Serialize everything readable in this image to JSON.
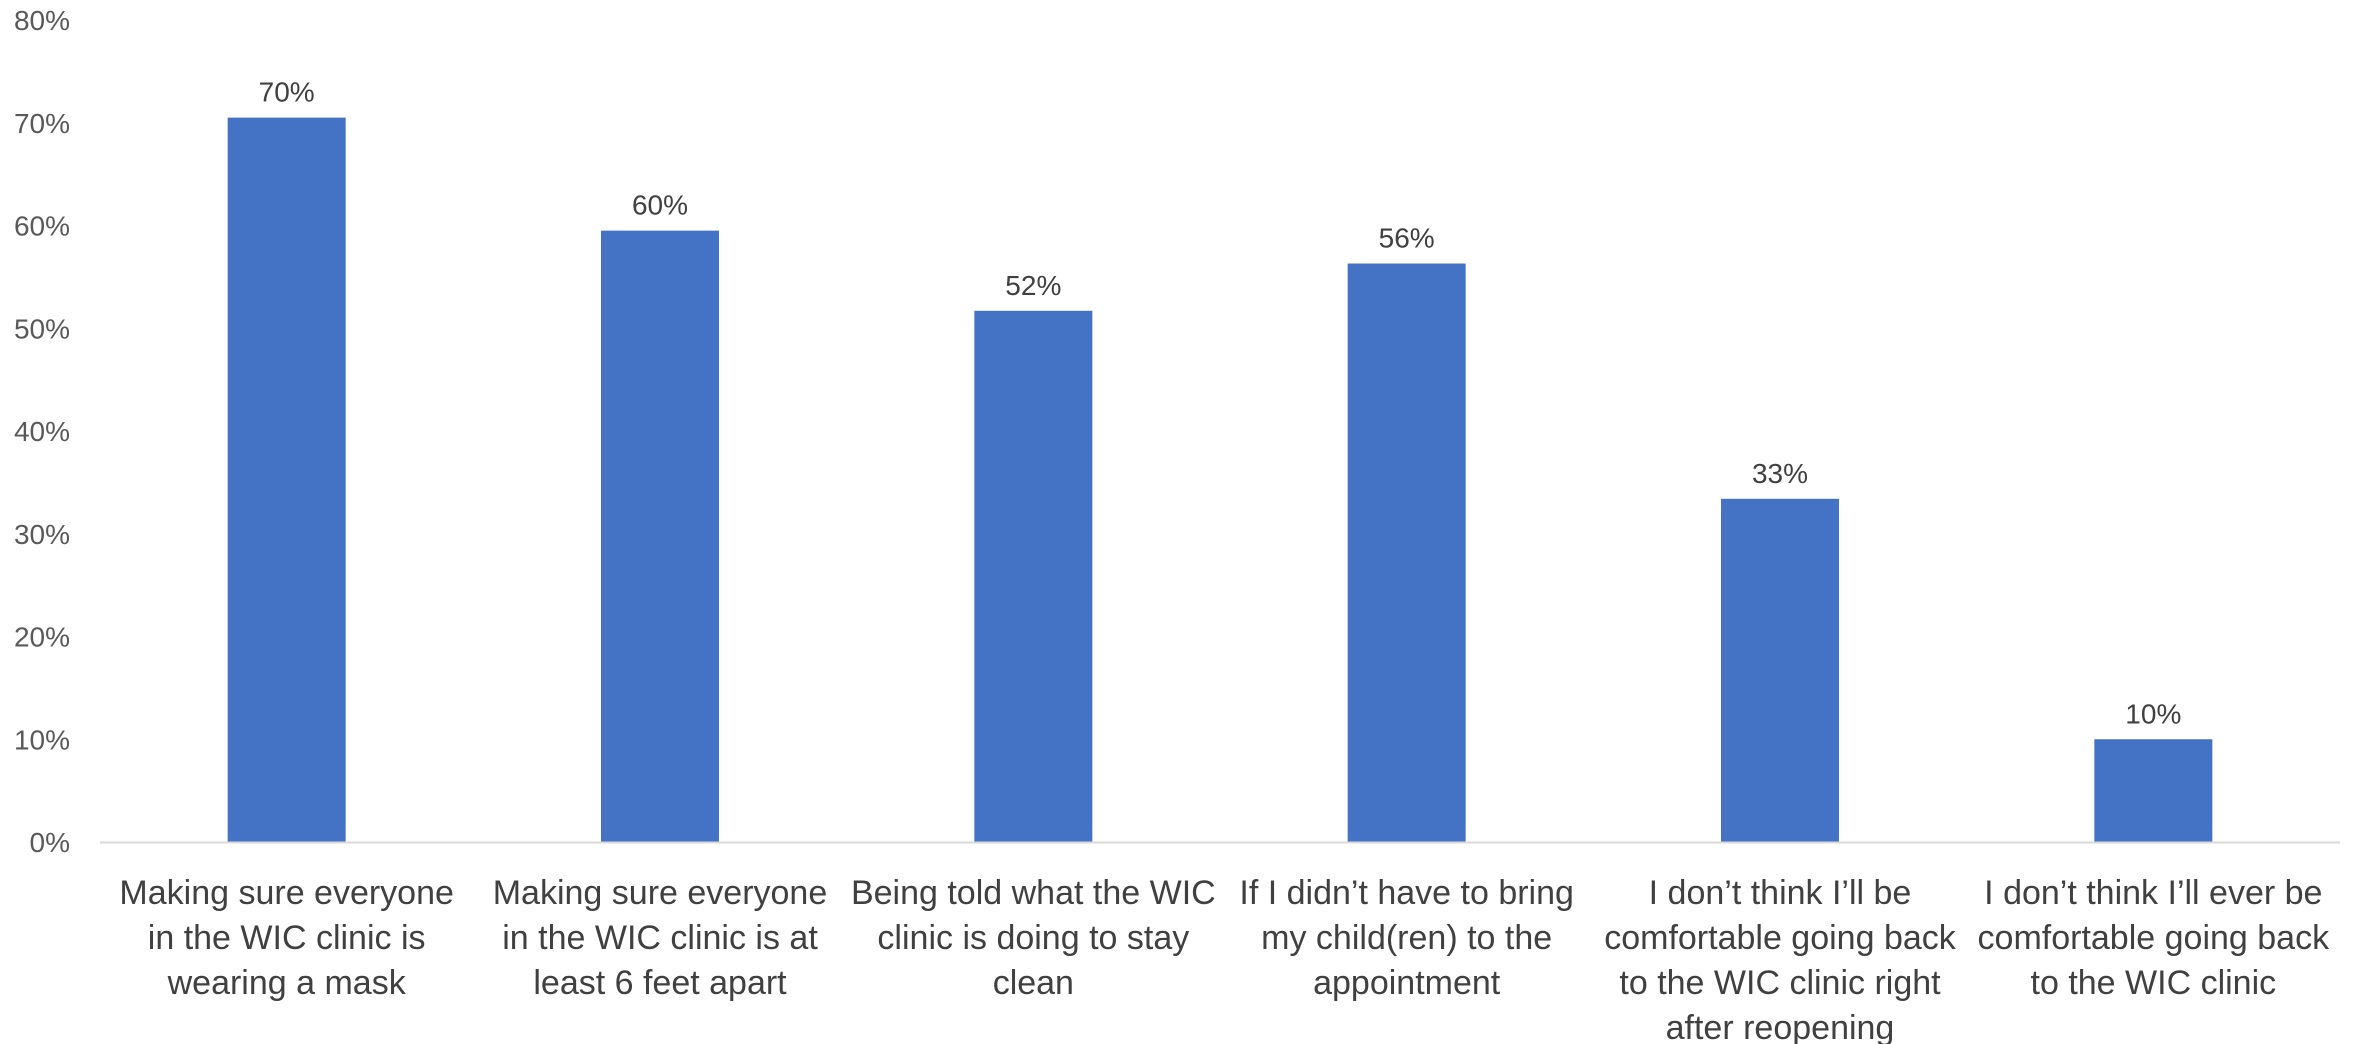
{
  "chart_data": {
    "type": "bar",
    "categories": [
      [
        "Making sure everyone",
        "in the WIC clinic is",
        "wearing a mask"
      ],
      [
        "Making sure everyone",
        "in the WIC clinic is at",
        "least 6 feet apart"
      ],
      [
        "Being told what the WIC",
        "clinic is doing to stay",
        "clean"
      ],
      [
        "If I didn’t have to bring",
        "my child(ren) to the",
        "appointment"
      ],
      [
        "I don’t think I’ll be",
        "comfortable going back",
        "to the WIC clinic right",
        "after reopening"
      ],
      [
        "I don’t think I’ll ever be",
        "comfortable going back",
        "to the WIC clinic"
      ]
    ],
    "values": [
      70.5,
      59.5,
      51.7,
      56.3,
      33.4,
      10.0
    ],
    "data_labels": [
      "70%",
      "60%",
      "52%",
      "56%",
      "33%",
      "10%"
    ],
    "yticks": [
      "0%",
      "10%",
      "20%",
      "30%",
      "40%",
      "50%",
      "60%",
      "70%",
      "80%"
    ],
    "ylim": [
      0,
      80
    ],
    "title": "",
    "xlabel": "",
    "ylabel": "",
    "grid": false,
    "legend": "none",
    "bar_color": "#4472C4",
    "axis_color": "#D9D9D9"
  }
}
